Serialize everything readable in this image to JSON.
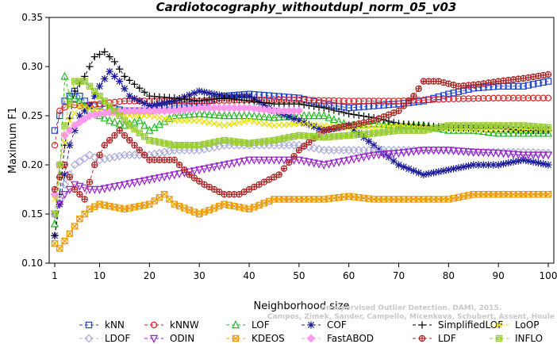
{
  "chart_data": {
    "type": "line",
    "title": "Cardiotocography_withoutdupl_norm_05_v03",
    "xlabel": "Neighborhood size",
    "ylabel": "Maximum F1",
    "xlim": [
      1,
      100
    ],
    "ylim": [
      0.1,
      0.35
    ],
    "xticks": [
      1,
      10,
      20,
      30,
      40,
      50,
      60,
      70,
      80,
      90,
      100
    ],
    "yticks": [
      0.1,
      0.15,
      0.2,
      0.25,
      0.3,
      0.35
    ],
    "xtick_labels": [
      "1",
      "10",
      "20",
      "30",
      "40",
      "50",
      "60",
      "70",
      "80",
      "90",
      "100"
    ],
    "ytick_labels": [
      "0.10",
      "0.15",
      "0.20",
      "0.25",
      "0.30",
      "0.35"
    ],
    "grid": false,
    "legend_position": "bottom",
    "watermark_line1": "Unsupervised Outlier Detection. DAMI, 2015.",
    "watermark_line2": "Campos, Zimek, Sander, Campello, Micenkova, Schubert, Assent, Houle",
    "series": [
      {
        "name": "kNN",
        "color": "#2244cc",
        "marker": "square",
        "points": [
          [
            1,
            0.235
          ],
          [
            3,
            0.265
          ],
          [
            5,
            0.275
          ],
          [
            8,
            0.26
          ],
          [
            10,
            0.26
          ],
          [
            15,
            0.255
          ],
          [
            20,
            0.255
          ],
          [
            25,
            0.26
          ],
          [
            30,
            0.262
          ],
          [
            35,
            0.27
          ],
          [
            40,
            0.272
          ],
          [
            45,
            0.27
          ],
          [
            50,
            0.268
          ],
          [
            55,
            0.262
          ],
          [
            60,
            0.258
          ],
          [
            65,
            0.26
          ],
          [
            70,
            0.262
          ],
          [
            75,
            0.265
          ],
          [
            80,
            0.272
          ],
          [
            85,
            0.278
          ],
          [
            90,
            0.28
          ],
          [
            95,
            0.28
          ],
          [
            100,
            0.285
          ]
        ]
      },
      {
        "name": "kNNW",
        "color": "#dd2222",
        "marker": "circle",
        "points": [
          [
            1,
            0.22
          ],
          [
            2,
            0.255
          ],
          [
            4,
            0.262
          ],
          [
            6,
            0.26
          ],
          [
            10,
            0.262
          ],
          [
            15,
            0.265
          ],
          [
            20,
            0.265
          ],
          [
            30,
            0.265
          ],
          [
            40,
            0.266
          ],
          [
            50,
            0.266
          ],
          [
            60,
            0.265
          ],
          [
            70,
            0.265
          ],
          [
            80,
            0.267
          ],
          [
            90,
            0.268
          ],
          [
            100,
            0.268
          ]
        ]
      },
      {
        "name": "LOF",
        "color": "#22bb22",
        "marker": "triangle-up",
        "points": [
          [
            1,
            0.14
          ],
          [
            2,
            0.19
          ],
          [
            3,
            0.29
          ],
          [
            4,
            0.27
          ],
          [
            6,
            0.265
          ],
          [
            8,
            0.255
          ],
          [
            10,
            0.25
          ],
          [
            12,
            0.245
          ],
          [
            15,
            0.24
          ],
          [
            18,
            0.245
          ],
          [
            20,
            0.235
          ],
          [
            25,
            0.25
          ],
          [
            30,
            0.252
          ],
          [
            35,
            0.25
          ],
          [
            40,
            0.25
          ],
          [
            45,
            0.248
          ],
          [
            50,
            0.25
          ],
          [
            55,
            0.25
          ],
          [
            60,
            0.24
          ],
          [
            65,
            0.242
          ],
          [
            70,
            0.24
          ],
          [
            75,
            0.24
          ],
          [
            80,
            0.235
          ],
          [
            85,
            0.235
          ],
          [
            90,
            0.232
          ],
          [
            95,
            0.232
          ],
          [
            100,
            0.232
          ]
        ]
      },
      {
        "name": "COF",
        "color": "#1a1a99",
        "marker": "star",
        "points": [
          [
            1,
            0.128
          ],
          [
            2,
            0.16
          ],
          [
            4,
            0.22
          ],
          [
            6,
            0.25
          ],
          [
            8,
            0.26
          ],
          [
            10,
            0.28
          ],
          [
            12,
            0.295
          ],
          [
            14,
            0.285
          ],
          [
            16,
            0.27
          ],
          [
            20,
            0.26
          ],
          [
            25,
            0.265
          ],
          [
            30,
            0.275
          ],
          [
            35,
            0.27
          ],
          [
            40,
            0.27
          ],
          [
            45,
            0.255
          ],
          [
            50,
            0.245
          ],
          [
            55,
            0.235
          ],
          [
            60,
            0.24
          ],
          [
            65,
            0.22
          ],
          [
            70,
            0.2
          ],
          [
            75,
            0.19
          ],
          [
            80,
            0.195
          ],
          [
            85,
            0.2
          ],
          [
            90,
            0.2
          ],
          [
            95,
            0.205
          ],
          [
            100,
            0.2
          ]
        ]
      },
      {
        "name": "SimplifiedLOF",
        "color": "#000000",
        "marker": "plus",
        "points": [
          [
            1,
            0.128
          ],
          [
            2,
            0.17
          ],
          [
            3,
            0.22
          ],
          [
            5,
            0.275
          ],
          [
            7,
            0.29
          ],
          [
            9,
            0.31
          ],
          [
            11,
            0.315
          ],
          [
            13,
            0.305
          ],
          [
            15,
            0.29
          ],
          [
            17,
            0.282
          ],
          [
            20,
            0.27
          ],
          [
            25,
            0.268
          ],
          [
            30,
            0.265
          ],
          [
            35,
            0.268
          ],
          [
            40,
            0.265
          ],
          [
            45,
            0.262
          ],
          [
            50,
            0.262
          ],
          [
            55,
            0.258
          ],
          [
            60,
            0.252
          ],
          [
            65,
            0.248
          ],
          [
            70,
            0.242
          ],
          [
            75,
            0.24
          ],
          [
            80,
            0.238
          ],
          [
            85,
            0.237
          ],
          [
            90,
            0.237
          ],
          [
            95,
            0.235
          ],
          [
            100,
            0.235
          ]
        ]
      },
      {
        "name": "LoOP",
        "color": "#e8e000",
        "marker": "cross",
        "points": [
          [
            1,
            0.165
          ],
          [
            2,
            0.2
          ],
          [
            4,
            0.245
          ],
          [
            6,
            0.26
          ],
          [
            10,
            0.255
          ],
          [
            15,
            0.25
          ],
          [
            20,
            0.25
          ],
          [
            25,
            0.245
          ],
          [
            30,
            0.245
          ],
          [
            35,
            0.24
          ],
          [
            40,
            0.245
          ],
          [
            45,
            0.24
          ],
          [
            50,
            0.242
          ],
          [
            55,
            0.24
          ],
          [
            60,
            0.238
          ],
          [
            65,
            0.238
          ],
          [
            70,
            0.24
          ],
          [
            75,
            0.238
          ],
          [
            80,
            0.237
          ],
          [
            85,
            0.236
          ],
          [
            90,
            0.236
          ],
          [
            95,
            0.236
          ],
          [
            100,
            0.236
          ]
        ]
      },
      {
        "name": "LDOF",
        "color": "#aaaadd",
        "marker": "diamond",
        "points": [
          [
            1,
            0.15
          ],
          [
            3,
            0.18
          ],
          [
            5,
            0.2
          ],
          [
            8,
            0.21
          ],
          [
            10,
            0.205
          ],
          [
            15,
            0.21
          ],
          [
            20,
            0.21
          ],
          [
            25,
            0.215
          ],
          [
            30,
            0.215
          ],
          [
            35,
            0.22
          ],
          [
            40,
            0.22
          ],
          [
            45,
            0.22
          ],
          [
            50,
            0.22
          ],
          [
            55,
            0.215
          ],
          [
            60,
            0.215
          ],
          [
            65,
            0.215
          ],
          [
            70,
            0.215
          ],
          [
            75,
            0.215
          ],
          [
            80,
            0.215
          ],
          [
            85,
            0.213
          ],
          [
            90,
            0.213
          ],
          [
            95,
            0.213
          ],
          [
            100,
            0.212
          ]
        ]
      },
      {
        "name": "ODIN",
        "color": "#9922cc",
        "marker": "triangle-down",
        "points": [
          [
            1,
            0.15
          ],
          [
            3,
            0.17
          ],
          [
            5,
            0.18
          ],
          [
            8,
            0.175
          ],
          [
            10,
            0.175
          ],
          [
            15,
            0.18
          ],
          [
            20,
            0.185
          ],
          [
            25,
            0.19
          ],
          [
            30,
            0.195
          ],
          [
            35,
            0.2
          ],
          [
            40,
            0.205
          ],
          [
            45,
            0.205
          ],
          [
            50,
            0.205
          ],
          [
            55,
            0.2
          ],
          [
            60,
            0.205
          ],
          [
            65,
            0.21
          ],
          [
            70,
            0.212
          ],
          [
            75,
            0.215
          ],
          [
            80,
            0.215
          ],
          [
            85,
            0.213
          ],
          [
            90,
            0.212
          ],
          [
            95,
            0.21
          ],
          [
            100,
            0.21
          ]
        ]
      },
      {
        "name": "KDEOS",
        "color": "#ee9900",
        "marker": "square-x",
        "points": [
          [
            1,
            0.12
          ],
          [
            2,
            0.115
          ],
          [
            4,
            0.13
          ],
          [
            6,
            0.145
          ],
          [
            8,
            0.155
          ],
          [
            10,
            0.16
          ],
          [
            15,
            0.155
          ],
          [
            20,
            0.16
          ],
          [
            23,
            0.17
          ],
          [
            25,
            0.16
          ],
          [
            30,
            0.15
          ],
          [
            35,
            0.16
          ],
          [
            40,
            0.155
          ],
          [
            45,
            0.165
          ],
          [
            50,
            0.165
          ],
          [
            55,
            0.165
          ],
          [
            60,
            0.168
          ],
          [
            65,
            0.165
          ],
          [
            70,
            0.165
          ],
          [
            75,
            0.165
          ],
          [
            80,
            0.165
          ],
          [
            85,
            0.17
          ],
          [
            90,
            0.17
          ],
          [
            95,
            0.17
          ],
          [
            100,
            0.17
          ]
        ]
      },
      {
        "name": "FastABOD",
        "color": "#ff99ee",
        "marker": "diamond-fill",
        "points": [
          [
            1,
            0.17
          ],
          [
            2,
            0.2
          ],
          [
            3,
            0.23
          ],
          [
            5,
            0.24
          ],
          [
            8,
            0.25
          ],
          [
            10,
            0.252
          ],
          [
            15,
            0.255
          ],
          [
            20,
            0.255
          ],
          [
            25,
            0.255
          ],
          [
            30,
            0.258
          ],
          [
            35,
            0.258
          ],
          [
            40,
            0.258
          ],
          [
            45,
            0.255
          ],
          [
            50,
            0.255
          ]
        ]
      },
      {
        "name": "LDF",
        "color": "#aa2222",
        "marker": "circle-plus",
        "points": [
          [
            1,
            0.175
          ],
          [
            3,
            0.2
          ],
          [
            5,
            0.175
          ],
          [
            7,
            0.165
          ],
          [
            9,
            0.2
          ],
          [
            11,
            0.22
          ],
          [
            14,
            0.235
          ],
          [
            17,
            0.22
          ],
          [
            20,
            0.205
          ],
          [
            25,
            0.205
          ],
          [
            28,
            0.19
          ],
          [
            31,
            0.18
          ],
          [
            35,
            0.17
          ],
          [
            38,
            0.17
          ],
          [
            42,
            0.18
          ],
          [
            46,
            0.19
          ],
          [
            50,
            0.215
          ],
          [
            55,
            0.235
          ],
          [
            60,
            0.24
          ],
          [
            65,
            0.245
          ],
          [
            70,
            0.255
          ],
          [
            73,
            0.27
          ],
          [
            75,
            0.285
          ],
          [
            78,
            0.285
          ],
          [
            82,
            0.28
          ],
          [
            86,
            0.282
          ],
          [
            90,
            0.285
          ],
          [
            95,
            0.288
          ],
          [
            100,
            0.292
          ]
        ]
      },
      {
        "name": "INFLO",
        "color": "#99cc33",
        "marker": "square-hash",
        "points": [
          [
            1,
            0.15
          ],
          [
            2,
            0.2
          ],
          [
            3,
            0.24
          ],
          [
            5,
            0.285
          ],
          [
            7,
            0.285
          ],
          [
            10,
            0.27
          ],
          [
            13,
            0.255
          ],
          [
            16,
            0.24
          ],
          [
            20,
            0.225
          ],
          [
            25,
            0.22
          ],
          [
            30,
            0.22
          ],
          [
            35,
            0.225
          ],
          [
            40,
            0.222
          ],
          [
            45,
            0.225
          ],
          [
            50,
            0.23
          ],
          [
            55,
            0.228
          ],
          [
            60,
            0.23
          ],
          [
            65,
            0.232
          ],
          [
            70,
            0.235
          ],
          [
            75,
            0.235
          ],
          [
            80,
            0.24
          ],
          [
            85,
            0.24
          ],
          [
            90,
            0.24
          ],
          [
            95,
            0.24
          ],
          [
            100,
            0.238
          ]
        ]
      }
    ]
  }
}
